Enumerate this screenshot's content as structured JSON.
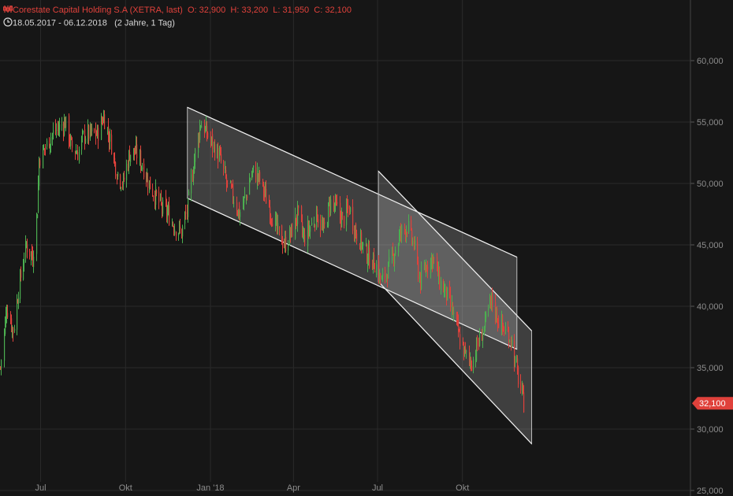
{
  "header": {
    "instrument": "Corestate Capital Holding S.A (XETRA, last)",
    "open_label": "O:",
    "open": "32,900",
    "high_label": "H:",
    "high": "33,200",
    "low_label": "L:",
    "low": "31,950",
    "close_label": "C:",
    "close": "32,100",
    "date_range": "18.05.2017 - 06.12.2018",
    "period": "(2 Jahre, 1 Tag)",
    "icons": [
      "candlestick-icon",
      "clock-icon"
    ]
  },
  "colors": {
    "background": "#161616",
    "grid": "#2a2a2a",
    "up": "#4caf50",
    "down": "#e0413b",
    "axis_text": "#8c8c8c",
    "price_badge": "#e0413b",
    "channel_fill": "rgba(230,230,230,0.20)",
    "channel_line": "#eeeeee"
  },
  "chart_data": {
    "type": "candlestick",
    "title": "Corestate Capital Holding S.A (XETRA, last)",
    "x_ticks": [
      "Jul",
      "Okt",
      "Jan '18",
      "Apr",
      "Jul",
      "Okt"
    ],
    "y_ticks": [
      "25,000",
      "30,000",
      "35,000",
      "40,000",
      "45,000",
      "50,000",
      "55,000",
      "60,000"
    ],
    "ylim": [
      25,
      64.5
    ],
    "last_price": "32,100",
    "last_value": 32.1,
    "grid": true,
    "price_series_approx": [
      [
        "2017-05-18",
        35
      ],
      [
        "2017-05-25",
        40
      ],
      [
        "2017-06-01",
        38
      ],
      [
        "2017-06-08",
        42
      ],
      [
        "2017-06-15",
        45
      ],
      [
        "2017-06-22",
        44
      ],
      [
        "2017-06-27",
        48
      ],
      [
        "2017-06-29",
        52
      ],
      [
        "2017-07-06",
        53
      ],
      [
        "2017-07-13",
        54
      ],
      [
        "2017-07-20",
        54.5
      ],
      [
        "2017-07-27",
        55
      ],
      [
        "2017-08-03",
        53
      ],
      [
        "2017-08-10",
        52.5
      ],
      [
        "2017-08-17",
        54
      ],
      [
        "2017-08-24",
        54
      ],
      [
        "2017-08-31",
        54
      ],
      [
        "2017-09-07",
        55.5
      ],
      [
        "2017-09-14",
        53.5
      ],
      [
        "2017-09-21",
        51
      ],
      [
        "2017-09-28",
        50
      ],
      [
        "2017-10-05",
        52.5
      ],
      [
        "2017-10-12",
        52.5
      ],
      [
        "2017-10-19",
        51.5
      ],
      [
        "2017-10-26",
        50
      ],
      [
        "2017-11-02",
        49
      ],
      [
        "2017-11-09",
        48
      ],
      [
        "2017-11-16",
        47.5
      ],
      [
        "2017-11-23",
        46.5
      ],
      [
        "2017-11-30",
        46
      ],
      [
        "2017-12-07",
        48
      ],
      [
        "2017-12-14",
        52
      ],
      [
        "2017-12-21",
        55
      ],
      [
        "2017-12-28",
        54
      ],
      [
        "2018-01-04",
        53
      ],
      [
        "2018-01-11",
        52
      ],
      [
        "2018-01-18",
        50
      ],
      [
        "2018-01-25",
        49
      ],
      [
        "2018-02-01",
        47.5
      ],
      [
        "2018-02-08",
        49
      ],
      [
        "2018-02-15",
        51
      ],
      [
        "2018-02-22",
        50.5
      ],
      [
        "2018-03-01",
        49
      ],
      [
        "2018-03-08",
        47.5
      ],
      [
        "2018-03-15",
        46
      ],
      [
        "2018-03-22",
        45
      ],
      [
        "2018-03-29",
        46
      ],
      [
        "2018-04-05",
        47.5
      ],
      [
        "2018-04-12",
        45.5
      ],
      [
        "2018-04-19",
        46.5
      ],
      [
        "2018-04-26",
        47.5
      ],
      [
        "2018-05-03",
        46
      ],
      [
        "2018-05-10",
        48.5
      ],
      [
        "2018-05-17",
        48
      ],
      [
        "2018-05-24",
        47
      ],
      [
        "2018-05-31",
        48
      ],
      [
        "2018-06-07",
        46
      ],
      [
        "2018-06-14",
        45
      ],
      [
        "2018-06-21",
        44
      ],
      [
        "2018-06-28",
        43.5
      ],
      [
        "2018-07-05",
        42
      ],
      [
        "2018-07-12",
        43
      ],
      [
        "2018-07-19",
        44.5
      ],
      [
        "2018-07-26",
        46
      ],
      [
        "2018-08-02",
        46.5
      ],
      [
        "2018-08-09",
        45
      ],
      [
        "2018-08-16",
        42
      ],
      [
        "2018-08-23",
        43.5
      ],
      [
        "2018-08-30",
        44
      ],
      [
        "2018-09-06",
        42
      ],
      [
        "2018-09-13",
        41
      ],
      [
        "2018-09-20",
        39.5
      ],
      [
        "2018-09-27",
        37.5
      ],
      [
        "2018-10-04",
        36
      ],
      [
        "2018-10-11",
        35.5
      ],
      [
        "2018-10-18",
        37
      ],
      [
        "2018-10-25",
        38.5
      ],
      [
        "2018-11-01",
        40.5
      ],
      [
        "2018-11-08",
        39
      ],
      [
        "2018-11-15",
        38
      ],
      [
        "2018-11-22",
        37.5
      ],
      [
        "2018-11-29",
        34.5
      ],
      [
        "2018-12-06",
        32.1
      ]
    ],
    "trend_channels": [
      {
        "upper": [
          [
            "2017-12-07",
            56.2
          ],
          [
            "2018-11-29",
            44
          ]
        ],
        "lower": [
          [
            "2017-12-07",
            48.8
          ],
          [
            "2018-11-29",
            36.5
          ]
        ]
      },
      {
        "upper": [
          [
            "2018-07-02",
            51
          ],
          [
            "2018-12-15",
            38
          ]
        ],
        "lower": [
          [
            "2018-07-02",
            42
          ],
          [
            "2018-12-15",
            28.8
          ]
        ]
      }
    ]
  }
}
